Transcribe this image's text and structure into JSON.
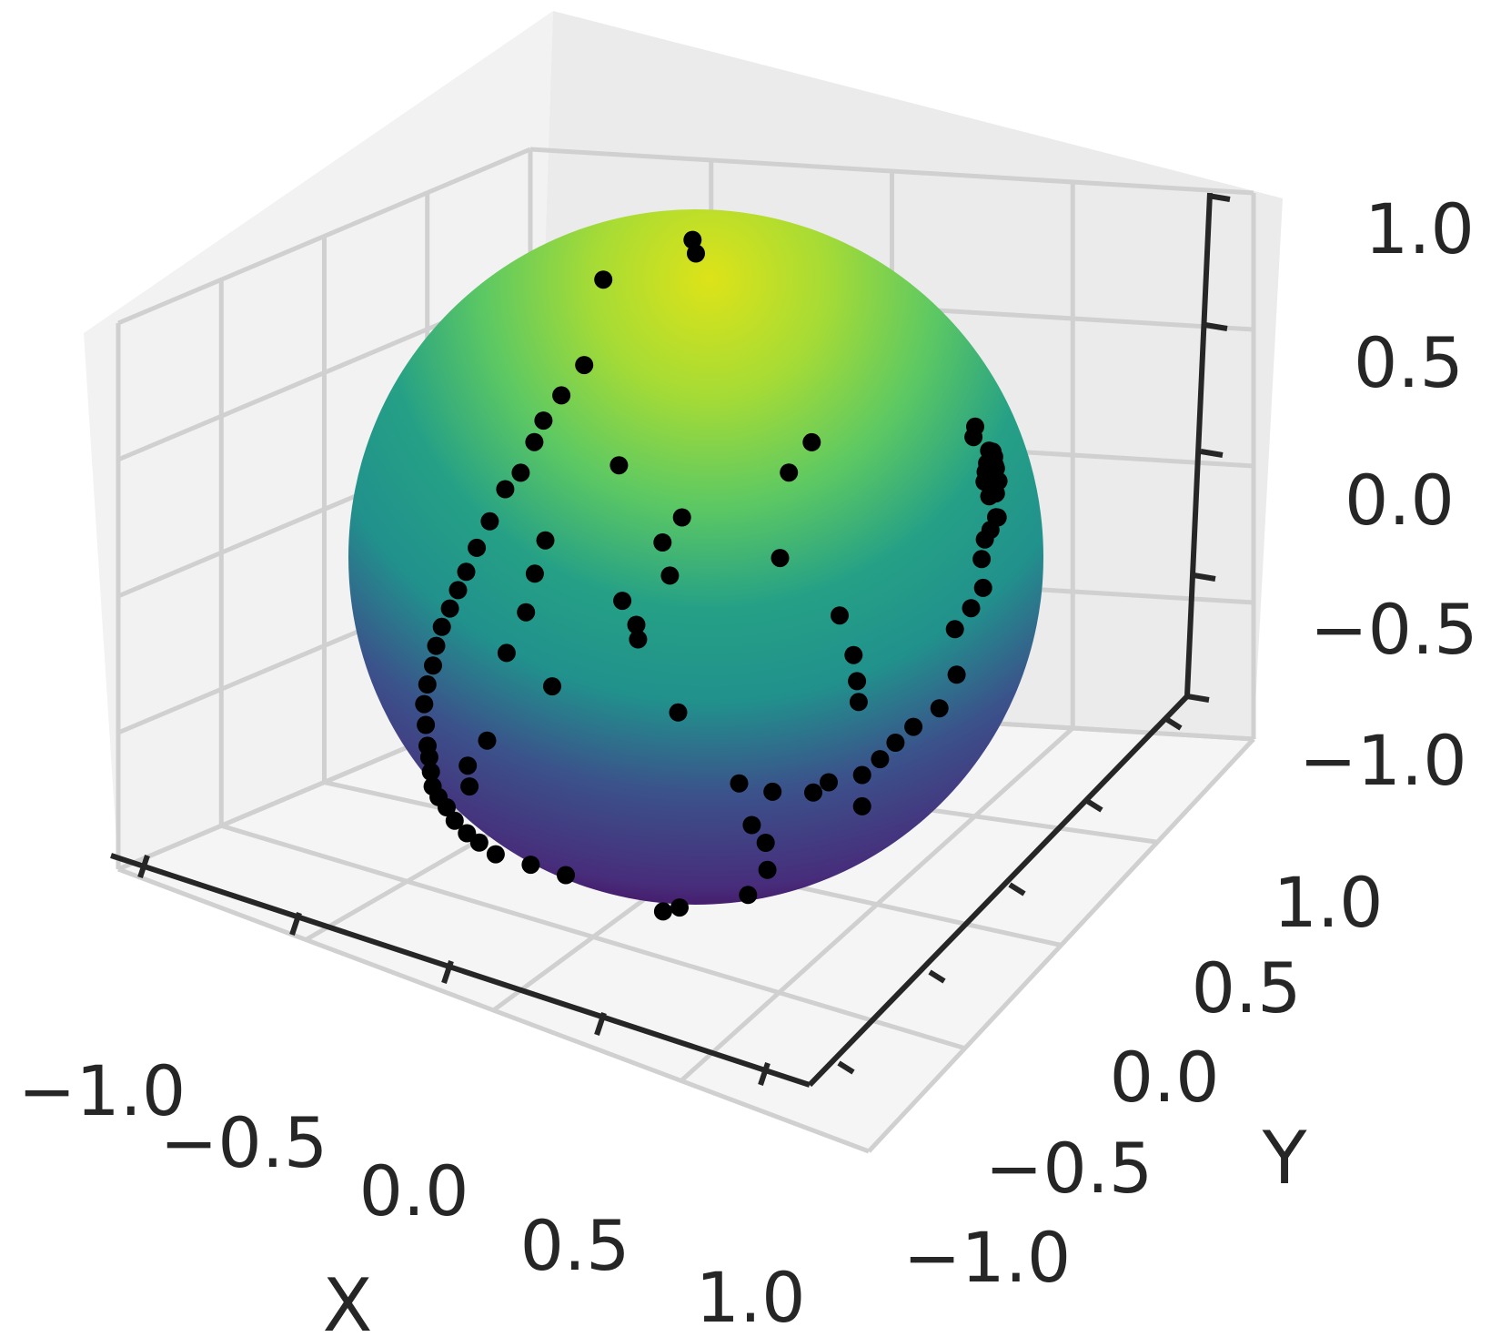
{
  "chart_data": {
    "type": "scatter",
    "title": "",
    "xlabel": "X",
    "ylabel": "Y",
    "zlabel": "",
    "xlim": [
      -1.0,
      1.0
    ],
    "ylim": [
      -1.0,
      1.0
    ],
    "zlim": [
      -1.0,
      1.0
    ],
    "x_ticks": [
      "−1.0",
      "−0.5",
      "0.0",
      "0.5",
      "1.0"
    ],
    "y_ticks": [
      "−1.0",
      "−0.5",
      "0.0",
      "0.5",
      "1.0"
    ],
    "z_ticks": [
      "−1.0",
      "−0.5",
      "0.0",
      "0.5",
      "1.0"
    ],
    "grid": true,
    "surface": {
      "shape": "unit sphere",
      "colormap": "viridis"
    },
    "points_color": "#000000",
    "points": [
      [
        -0.1,
        0.1,
        0.98
      ],
      [
        0.0,
        0.0,
        0.97
      ],
      [
        -0.55,
        0.2,
        0.75
      ],
      [
        0.45,
        0.8,
        0.4
      ],
      [
        0.4,
        0.85,
        0.35
      ],
      [
        0.55,
        0.75,
        0.35
      ],
      [
        0.6,
        0.7,
        0.35
      ],
      [
        0.65,
        0.65,
        0.38
      ],
      [
        0.7,
        0.6,
        0.38
      ],
      [
        0.72,
        0.58,
        0.36
      ],
      [
        0.75,
        0.55,
        0.36
      ],
      [
        0.78,
        0.5,
        0.38
      ],
      [
        0.8,
        0.45,
        0.4
      ],
      [
        0.82,
        0.42,
        0.38
      ],
      [
        0.85,
        0.38,
        0.36
      ],
      [
        0.7,
        0.62,
        0.3
      ],
      [
        0.68,
        0.6,
        0.25
      ],
      [
        0.62,
        0.66,
        0.3
      ],
      [
        0.75,
        0.55,
        0.28
      ],
      [
        0.8,
        0.5,
        0.22
      ],
      [
        0.88,
        0.4,
        0.25
      ],
      [
        0.9,
        0.35,
        0.22
      ],
      [
        0.92,
        0.3,
        0.2
      ],
      [
        0.95,
        0.25,
        0.15
      ],
      [
        0.93,
        0.28,
        0.05
      ],
      [
        0.95,
        0.2,
        0.0
      ],
      [
        0.97,
        0.1,
        -0.05
      ],
      [
        0.96,
        0.12,
        -0.2
      ],
      [
        0.95,
        0.05,
        -0.3
      ],
      [
        0.93,
        -0.05,
        -0.35
      ],
      [
        0.9,
        -0.1,
        -0.4
      ],
      [
        0.88,
        -0.15,
        -0.45
      ],
      [
        0.85,
        -0.2,
        -0.5
      ],
      [
        0.8,
        -0.3,
        -0.52
      ],
      [
        0.78,
        -0.35,
        -0.55
      ],
      [
        0.7,
        -0.45,
        -0.55
      ],
      [
        0.65,
        -0.55,
        -0.52
      ],
      [
        0.3,
        0.2,
        0.4
      ],
      [
        0.25,
        0.15,
        0.3
      ],
      [
        -0.8,
        0.4,
        0.4
      ],
      [
        -0.85,
        0.35,
        0.3
      ],
      [
        -0.88,
        0.3,
        0.22
      ],
      [
        -0.9,
        0.28,
        0.15
      ],
      [
        -0.93,
        0.25,
        0.05
      ],
      [
        -0.95,
        0.2,
        0.0
      ],
      [
        -0.97,
        0.15,
        -0.1
      ],
      [
        -0.98,
        0.1,
        -0.18
      ],
      [
        -0.98,
        0.05,
        -0.25
      ],
      [
        -0.97,
        0.0,
        -0.3
      ],
      [
        -0.96,
        -0.05,
        -0.35
      ],
      [
        -0.95,
        -0.1,
        -0.4
      ],
      [
        -0.93,
        -0.15,
        -0.45
      ],
      [
        -0.9,
        -0.2,
        -0.5
      ],
      [
        -0.88,
        -0.25,
        -0.55
      ],
      [
        -0.85,
        -0.3,
        -0.6
      ],
      [
        -0.8,
        -0.35,
        -0.65
      ],
      [
        -0.75,
        -0.4,
        -0.7
      ],
      [
        -0.7,
        -0.45,
        -0.72
      ],
      [
        -0.65,
        -0.5,
        -0.75
      ],
      [
        -0.6,
        -0.55,
        -0.78
      ],
      [
        -0.55,
        -0.58,
        -0.8
      ],
      [
        -0.5,
        -0.6,
        -0.82
      ],
      [
        -0.45,
        -0.62,
        -0.85
      ],
      [
        -0.4,
        -0.62,
        -0.88
      ],
      [
        -0.35,
        -0.62,
        -0.9
      ],
      [
        -0.3,
        -0.6,
        -0.93
      ],
      [
        -0.2,
        -0.55,
        -0.95
      ],
      [
        -0.1,
        -0.5,
        -0.97
      ],
      [
        -0.4,
        0.1,
        0.2
      ],
      [
        -0.1,
        0.05,
        0.1
      ],
      [
        -0.05,
        -0.1,
        0.05
      ],
      [
        -0.02,
        -0.1,
        -0.05
      ],
      [
        -0.3,
        0.0,
        -0.2
      ],
      [
        -0.2,
        -0.05,
        -0.25
      ],
      [
        -0.15,
        -0.1,
        -0.28
      ],
      [
        0.1,
        -0.2,
        -0.45
      ],
      [
        -0.5,
        -0.1,
        -0.5
      ],
      [
        -0.7,
        0.1,
        -0.1
      ],
      [
        -0.7,
        0.05,
        -0.2
      ],
      [
        -0.65,
        -0.05,
        -0.3
      ],
      [
        -0.6,
        -0.2,
        -0.4
      ],
      [
        -0.55,
        -0.35,
        -0.65
      ],
      [
        -0.5,
        -0.5,
        -0.7
      ],
      [
        -0.45,
        -0.55,
        -0.75
      ],
      [
        0.4,
        -0.2,
        -0.75
      ],
      [
        0.5,
        -0.25,
        -0.78
      ],
      [
        0.55,
        -0.3,
        -0.85
      ],
      [
        0.6,
        -0.45,
        -0.9
      ],
      [
        0.45,
        -0.6,
        -0.95
      ],
      [
        0.4,
        -0.62,
        -0.97
      ],
      [
        0.5,
        0.1,
        -0.1
      ],
      [
        0.6,
        0.05,
        -0.2
      ],
      [
        0.7,
        -0.05,
        -0.25
      ],
      [
        0.75,
        -0.1,
        -0.3
      ],
      [
        0.85,
        -0.2,
        -0.6
      ],
      [
        0.3,
        0.05,
        0.05
      ]
    ]
  }
}
